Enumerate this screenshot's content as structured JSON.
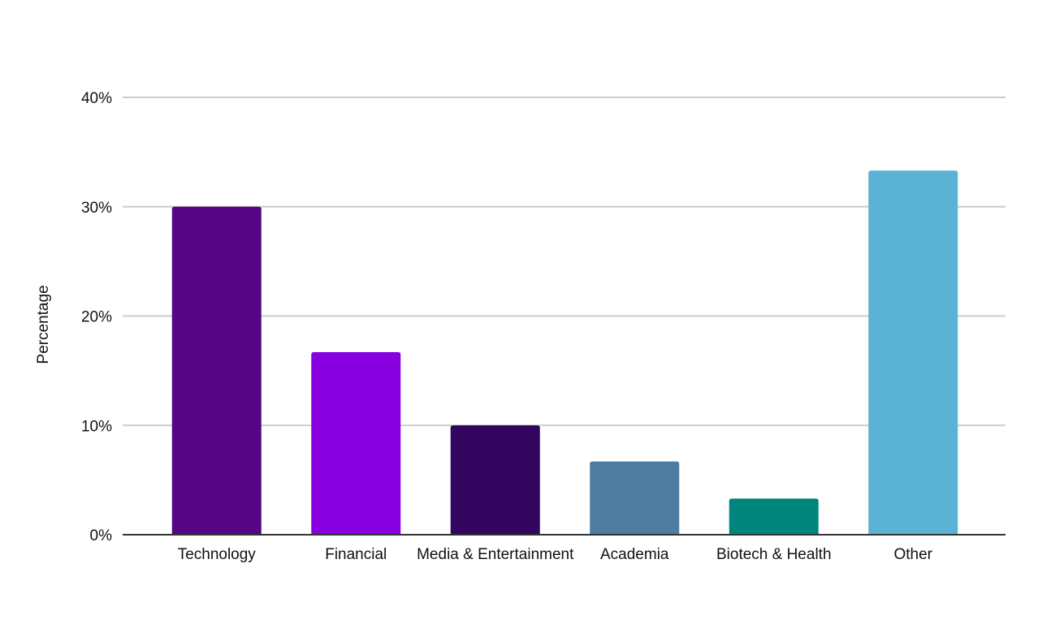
{
  "chart_data": {
    "type": "bar",
    "title": "",
    "xlabel": "",
    "ylabel": "Percentage",
    "categories": [
      "Technology",
      "Financial",
      "Media & Entertainment",
      "Academia",
      "Biotech & Health",
      "Other"
    ],
    "values": [
      30.0,
      16.7,
      10.0,
      6.7,
      3.3,
      33.3
    ],
    "colors": [
      "#540685",
      "#8800e0",
      "#33055e",
      "#4e7ba0",
      "#00857d",
      "#5ab2d4"
    ],
    "ylim": [
      0,
      40
    ],
    "yticks": [
      0,
      10,
      20,
      30,
      40
    ],
    "ytick_labels": [
      "0%",
      "10%",
      "20%",
      "30%",
      "40%"
    ],
    "grid": true,
    "legend": "none"
  }
}
